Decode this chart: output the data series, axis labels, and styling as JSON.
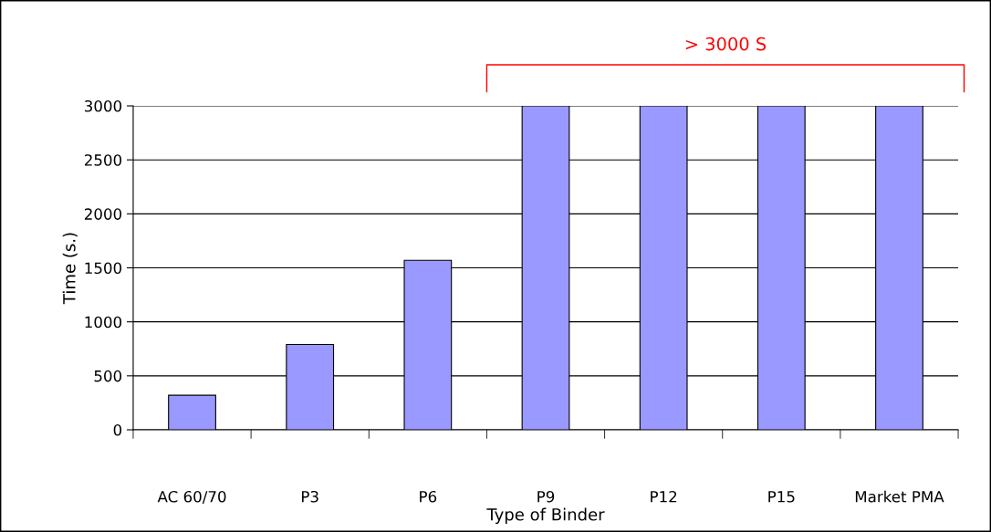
{
  "chart_data": {
    "type": "bar",
    "xlabel": "Type of Binder",
    "ylabel": "Time (s.)",
    "categories": [
      "AC 60/70",
      "P3",
      "P6",
      "P9",
      "P12",
      "P15",
      "Market PMA"
    ],
    "values": [
      320,
      790,
      1570,
      3000,
      3000,
      3000,
      3000
    ],
    "color": "#9999ff",
    "ylim": [
      0,
      3000
    ],
    "yticks": [
      0,
      500,
      1000,
      1500,
      2000,
      2500,
      3000
    ],
    "grid": "y",
    "annotations": [
      "> 3000 S"
    ]
  }
}
